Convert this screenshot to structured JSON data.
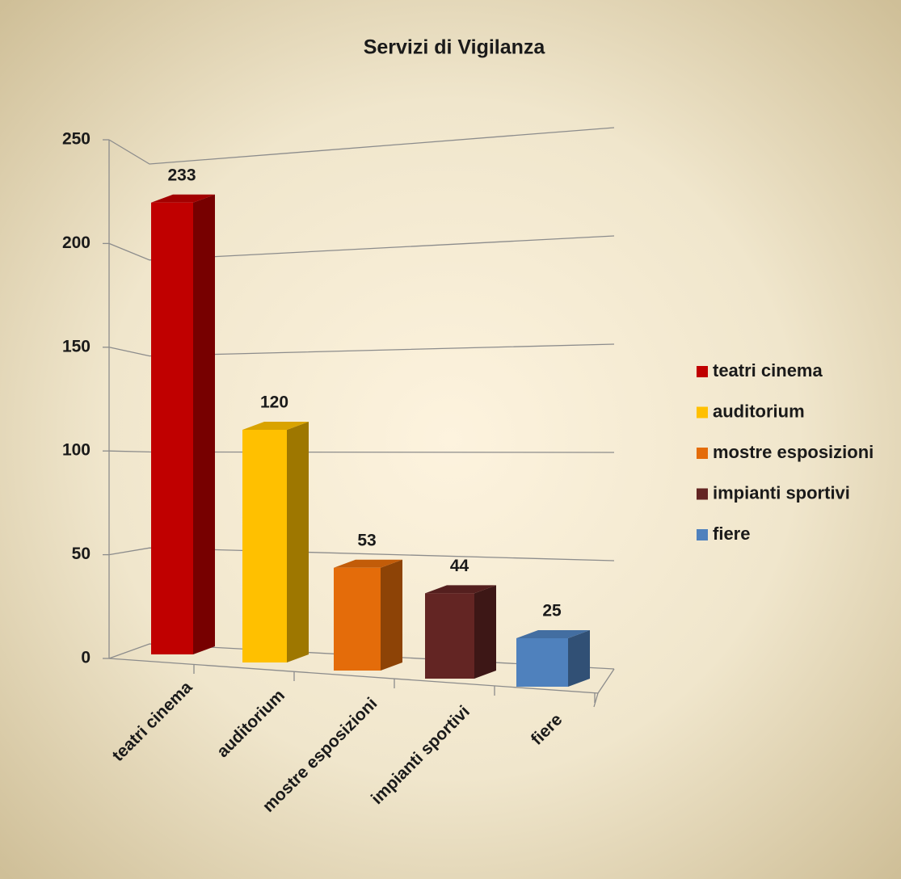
{
  "chart_data": {
    "type": "bar3d",
    "title": "Servizi di Vigilanza",
    "categories": [
      "teatri cinema",
      "auditorium",
      "mostre esposizioni",
      "impianti sportivi",
      "fiere"
    ],
    "values": [
      233,
      120,
      53,
      44,
      25
    ],
    "colors": [
      "#c00000",
      "#ffc000",
      "#e46c0a",
      "#632523",
      "#4f81bd"
    ],
    "ylim": [
      0,
      250
    ],
    "yticks": [
      0,
      50,
      100,
      150,
      200,
      250
    ],
    "grid": true,
    "legend": "right"
  }
}
